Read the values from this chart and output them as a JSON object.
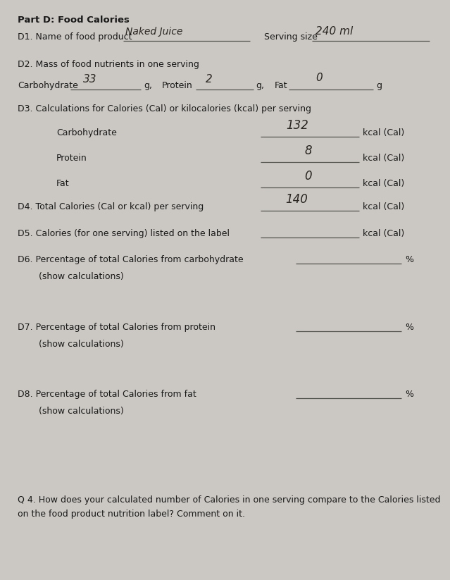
{
  "bg_color": "#cbc8c3",
  "text_color": "#1a1a1a",
  "hand_color": "#2a2520",
  "figsize": [
    6.39,
    8.23
  ],
  "dpi": 100,
  "title": "Part D: Food Calories",
  "d1_label": "D1. Name of food product",
  "d1_answer": "Naked Juice",
  "serving_label": "Serving size",
  "serving_answer": "240 ml",
  "d2_label": "D2. Mass of food nutrients in one serving",
  "carb_label": "Carbohydrate",
  "carb_val": "33",
  "protein_label": "Protein",
  "protein_val": "2",
  "fat_label": "Fat",
  "fat_val": "0",
  "d3_label": "D3. Calculations for Calories (Cal) or kilocalories (kcal) per serving",
  "carb_kcal": "132",
  "protein_kcal": "8",
  "fat_kcal": "0",
  "d4_label": "D4. Total Calories (Cal or kcal) per serving",
  "d4_val": "140",
  "d5_label": "D5. Calories (for one serving) listed on the label",
  "d6_label": "D6. Percentage of total Calories from carbohydrate",
  "show_calc": "(show calculations)",
  "d7_label": "D7. Percentage of total Calories from protein",
  "d8_label": "D8. Percentage of total Calories from fat",
  "q4_line1": "Q 4. How does your calculated number of Calories in one serving compare to the Calories listed",
  "q4_line2": "on the food product nutrition label? Comment on it."
}
